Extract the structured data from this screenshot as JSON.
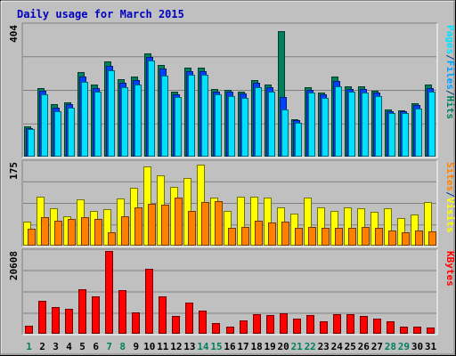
{
  "chart_data": {
    "type": "bar",
    "title": "Daily usage for March 2015",
    "categories": [
      "1",
      "2",
      "3",
      "4",
      "5",
      "6",
      "7",
      "8",
      "9",
      "10",
      "11",
      "12",
      "13",
      "14",
      "15",
      "16",
      "17",
      "18",
      "19",
      "20",
      "21",
      "22",
      "23",
      "24",
      "25",
      "26",
      "27",
      "28",
      "29",
      "30",
      "31"
    ],
    "weekend_days": [
      "1",
      "7",
      "8",
      "14",
      "15",
      "21",
      "22",
      "28",
      "29"
    ],
    "panels": [
      {
        "max_label": "404",
        "ymax": 404,
        "legend": [
          {
            "text": "Pages",
            "color": "#00e0ff"
          },
          {
            "text": "/",
            "color": "#004080"
          },
          {
            "text": "Files",
            "color": "#00a0ff"
          },
          {
            "text": "/",
            "color": "#004080"
          },
          {
            "text": "Hits",
            "color": "#008060"
          }
        ],
        "series": [
          {
            "name": "Hits",
            "color": "#00805c",
            "values": [
              92,
              210,
              160,
              166,
              258,
              222,
              292,
              238,
              246,
              318,
              282,
              198,
              272,
              274,
              207,
              206,
              200,
              236,
              222,
              386,
              116,
              213,
              196,
              246,
              215,
              216,
              201,
              146,
              141,
              165,
              220
            ]
          },
          {
            "name": "Files",
            "color": "#0040ff",
            "values": [
              88,
              202,
              150,
              160,
              246,
              210,
              278,
              226,
              236,
              306,
              270,
              190,
              262,
              262,
              200,
              198,
              194,
              226,
              214,
              184,
              112,
              206,
              190,
              232,
              208,
              208,
              196,
              140,
              138,
              158,
              210
            ]
          },
          {
            "name": "Pages",
            "color": "#00e0ff",
            "values": [
              84,
              190,
              140,
              150,
              230,
              198,
              264,
              212,
              220,
              296,
              248,
              182,
              250,
              250,
              190,
              186,
              180,
              212,
              200,
              146,
              104,
              196,
              180,
              216,
              198,
              196,
              186,
              134,
              134,
              148,
              198
            ]
          }
        ]
      },
      {
        "max_label": "175",
        "ymax": 175,
        "legend": [
          {
            "text": "Sites",
            "color": "#ff8000"
          },
          {
            "text": "/",
            "color": "#004080"
          },
          {
            "text": "Visits",
            "color": "#ffff00"
          }
        ],
        "series": [
          {
            "name": "Visits",
            "color": "#ffff00",
            "values": [
              50,
              102,
              78,
              62,
              97,
              72,
              76,
              98,
              121,
              165,
              148,
              122,
              142,
              170,
              101,
              72,
              103,
              102,
              100,
              80,
              67,
              100,
              80,
              72,
              80,
              78,
              71,
              78,
              57,
              65,
              92
            ]
          },
          {
            "name": "Sites",
            "color": "#ff8000",
            "values": [
              36,
              60,
              52,
              55,
              60,
              55,
              28,
              62,
              80,
              88,
              86,
              100,
              72,
              92,
              93,
              38,
              40,
              52,
              48,
              50,
              38,
              40,
              38,
              38,
              38,
              40,
              38,
              32,
              28,
              32,
              30
            ]
          }
        ]
      },
      {
        "max_label": "20608",
        "ymax": 20608,
        "legend": [
          {
            "text": "KBytes",
            "color": "#ff0000"
          }
        ],
        "series": [
          {
            "name": "KBytes",
            "color": "#ff0000",
            "values": [
              1900,
              8100,
              6600,
              6200,
              11100,
              9300,
              20608,
              10900,
              5400,
              16100,
              9300,
              4500,
              7800,
              5800,
              2600,
              1700,
              3300,
              4900,
              4600,
              5100,
              3700,
              4600,
              3100,
              4900,
              4900,
              4500,
              3700,
              3100,
              1800,
              1800,
              1500
            ]
          }
        ]
      }
    ]
  }
}
